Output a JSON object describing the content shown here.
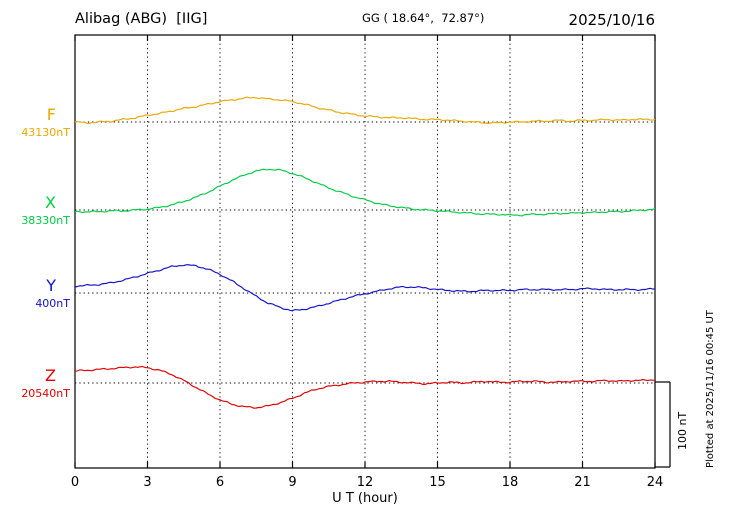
{
  "header": {
    "station": "Alibag (ABG)  [IIG]",
    "coords": "GG ( 18.64°,  72.87°)",
    "date": "2025/10/16"
  },
  "footer_note": "Plotted at 2025/11/16 00:45 UT",
  "scale_bar": {
    "label": "100 nT",
    "nT": 100
  },
  "chart_data": {
    "type": "line",
    "title": "Alibag (ABG)  [IIG] magnetogram",
    "xlabel": "U T (hour)",
    "x_range_hours": [
      0,
      24
    ],
    "x_ticks": [
      0,
      3,
      6,
      9,
      12,
      15,
      18,
      21,
      24
    ],
    "sample_step_hours": 0.5,
    "grid": "dotted",
    "series": [
      {
        "name": "F",
        "baseline_label": "43130nT",
        "baseline_nT": 43130,
        "color": "#eaa800",
        "offsets_nT": [
          0,
          -1,
          0,
          1,
          3,
          5,
          8,
          10,
          13,
          16,
          18,
          21,
          24,
          26,
          28,
          29,
          27,
          26,
          24,
          21,
          17,
          14,
          11,
          9,
          7,
          6,
          5,
          5,
          4,
          3,
          3,
          2,
          1,
          0,
          -1,
          -1,
          0,
          0,
          1,
          1,
          2,
          1,
          2,
          2,
          3,
          2,
          3,
          3,
          3
        ]
      },
      {
        "name": "X",
        "baseline_label": "38330nT",
        "baseline_nT": 38330,
        "color": "#00cc44",
        "offsets_nT": [
          -2,
          -2,
          -2,
          -1,
          -1,
          0,
          1,
          3,
          6,
          10,
          15,
          21,
          28,
          35,
          41,
          46,
          48,
          47,
          43,
          38,
          32,
          26,
          21,
          16,
          12,
          8,
          5,
          3,
          1,
          0,
          -1,
          -2,
          -3,
          -4,
          -5,
          -5,
          -6,
          -6,
          -5,
          -5,
          -4,
          -4,
          -3,
          -3,
          -2,
          -2,
          -1,
          0,
          1
        ]
      },
      {
        "name": "Y",
        "baseline_label": "400nT",
        "baseline_nT": 400,
        "color": "#1111cc",
        "offsets_nT": [
          8,
          9,
          10,
          12,
          15,
          19,
          23,
          27,
          31,
          33,
          32,
          28,
          22,
          14,
          5,
          -4,
          -12,
          -17,
          -21,
          -19,
          -16,
          -12,
          -8,
          -4,
          -1,
          2,
          5,
          7,
          7,
          6,
          4,
          3,
          2,
          2,
          3,
          3,
          3,
          4,
          4,
          4,
          4,
          4,
          5,
          5,
          4,
          4,
          4,
          4,
          5
        ]
      },
      {
        "name": "Z",
        "baseline_label": "20540nT",
        "baseline_nT": 20540,
        "color": "#e00000",
        "offsets_nT": [
          14,
          15,
          16,
          17,
          18,
          19,
          18,
          15,
          10,
          3,
          -5,
          -13,
          -20,
          -25,
          -28,
          -29,
          -27,
          -23,
          -18,
          -12,
          -7,
          -4,
          -2,
          0,
          1,
          2,
          2,
          1,
          0,
          -1,
          0,
          1,
          0,
          1,
          2,
          1,
          1,
          2,
          2,
          1,
          1,
          2,
          2,
          2,
          3,
          2,
          3,
          3,
          4
        ]
      }
    ]
  }
}
